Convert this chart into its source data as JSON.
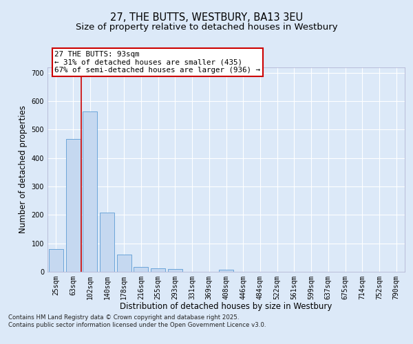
{
  "title1": "27, THE BUTTS, WESTBURY, BA13 3EU",
  "title2": "Size of property relative to detached houses in Westbury",
  "xlabel": "Distribution of detached houses by size in Westbury",
  "ylabel": "Number of detached properties",
  "bin_labels": [
    "25sqm",
    "63sqm",
    "102sqm",
    "140sqm",
    "178sqm",
    "216sqm",
    "255sqm",
    "293sqm",
    "331sqm",
    "369sqm",
    "408sqm",
    "446sqm",
    "484sqm",
    "522sqm",
    "561sqm",
    "599sqm",
    "637sqm",
    "675sqm",
    "714sqm",
    "752sqm",
    "790sqm"
  ],
  "bar_heights": [
    80,
    467,
    565,
    208,
    60,
    17,
    11,
    9,
    0,
    0,
    8,
    0,
    0,
    0,
    0,
    0,
    0,
    0,
    0,
    0,
    0
  ],
  "bar_color": "#c5d8f0",
  "bar_edge_color": "#5b9bd5",
  "bar_width": 0.85,
  "red_line_x": 1.5,
  "annotation_text": "27 THE BUTTS: 93sqm\n← 31% of detached houses are smaller (435)\n67% of semi-detached houses are larger (936) →",
  "annotation_box_color": "#ffffff",
  "annotation_box_edge_color": "#cc0000",
  "ylim": [
    0,
    720
  ],
  "yticks": [
    0,
    100,
    200,
    300,
    400,
    500,
    600,
    700
  ],
  "bg_color": "#dce9f8",
  "plot_bg_color": "#dce9f8",
  "grid_color": "#ffffff",
  "footer": "Contains HM Land Registry data © Crown copyright and database right 2025.\nContains public sector information licensed under the Open Government Licence v3.0.",
  "title_fontsize": 10.5,
  "subtitle_fontsize": 9.5,
  "axis_label_fontsize": 8.5,
  "tick_fontsize": 7,
  "annotation_fontsize": 7.8,
  "footer_fontsize": 6.2
}
